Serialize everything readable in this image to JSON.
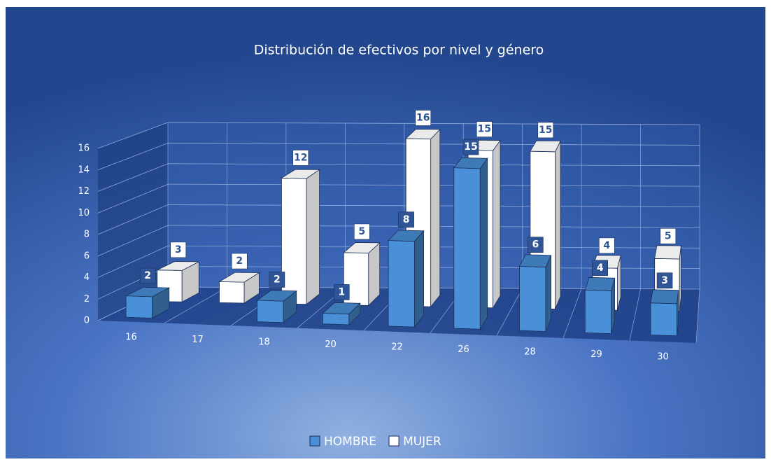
{
  "chart_data": {
    "type": "bar3d",
    "title": "Distribución de efectivos por nivel y género",
    "categories": [
      "16",
      "17",
      "18",
      "20",
      "22",
      "26",
      "28",
      "29",
      "30"
    ],
    "series": [
      {
        "name": "HOMBRE",
        "color": "#4a90d9",
        "values": [
          2,
          null,
          2,
          1,
          8,
          15,
          6,
          4,
          3
        ]
      },
      {
        "name": "MUJER",
        "color": "#ffffff",
        "values": [
          3,
          2,
          12,
          5,
          16,
          15,
          15,
          4,
          5
        ]
      }
    ],
    "ylim": [
      0,
      16
    ],
    "yticks": [
      0,
      2,
      4,
      6,
      8,
      10,
      12,
      14,
      16
    ],
    "grid": true,
    "legend": "bottom"
  }
}
